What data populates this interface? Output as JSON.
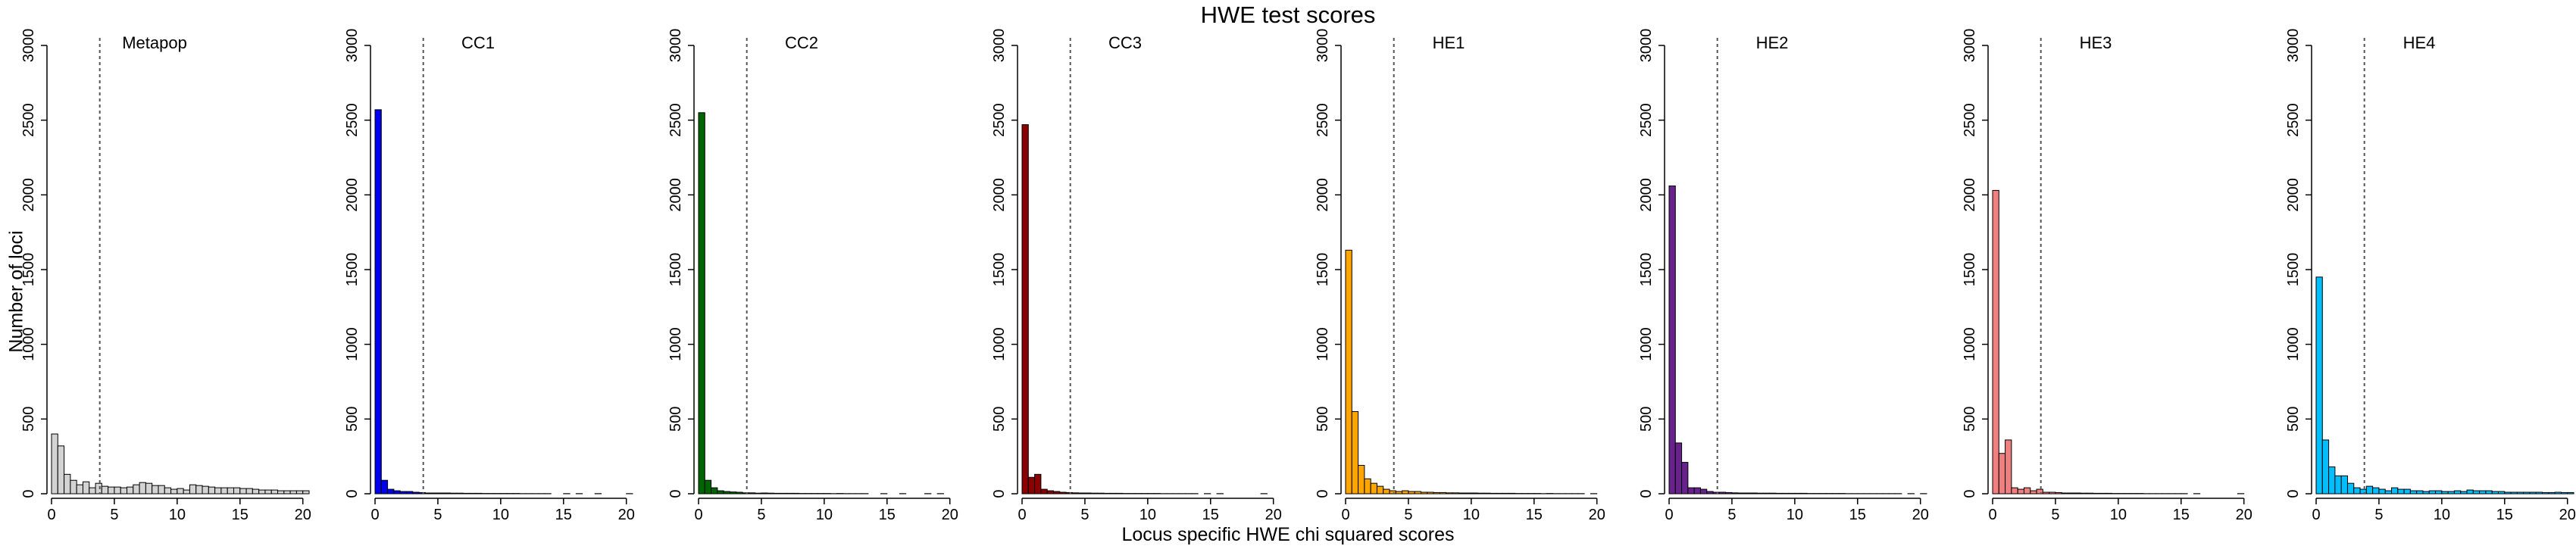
{
  "chart_data": {
    "type": "bar",
    "title": "HWE test scores",
    "xlabel": "Locus specific HWE chi squared scores",
    "ylabel": "Number of loci",
    "xlim": [
      0,
      20.5
    ],
    "ylim": [
      0,
      3000
    ],
    "x_ticks": [
      0,
      5,
      10,
      15,
      20
    ],
    "y_ticks": [
      0,
      500,
      1000,
      1500,
      2000,
      2500,
      3000
    ],
    "bin_width": 0.5,
    "threshold": 3.84,
    "panels": [
      {
        "name": "Metapop",
        "color": "#d3d3d3",
        "values": [
          400,
          320,
          130,
          90,
          60,
          80,
          40,
          70,
          50,
          45,
          45,
          40,
          45,
          60,
          75,
          70,
          55,
          55,
          40,
          30,
          35,
          25,
          60,
          55,
          50,
          45,
          40,
          40,
          40,
          40,
          35,
          35,
          30,
          25,
          25,
          25,
          20,
          20,
          20,
          20,
          20
        ]
      },
      {
        "name": "CC1",
        "color": "#0000ee",
        "values": [
          2570,
          90,
          30,
          20,
          15,
          15,
          10,
          8,
          5,
          5,
          5,
          5,
          4,
          4,
          3,
          3,
          3,
          2,
          2,
          2,
          2,
          2,
          2,
          1,
          1,
          1,
          1,
          1,
          0,
          0,
          1,
          0,
          1,
          0,
          0,
          1,
          0,
          0,
          0,
          0,
          1
        ]
      },
      {
        "name": "CC2",
        "color": "#006400",
        "values": [
          2550,
          90,
          40,
          20,
          15,
          12,
          10,
          6,
          6,
          4,
          5,
          4,
          3,
          3,
          3,
          3,
          2,
          2,
          2,
          2,
          2,
          1,
          2,
          1,
          1,
          1,
          1,
          0,
          0,
          1,
          0,
          0,
          1,
          0,
          0,
          0,
          1,
          0,
          1,
          0,
          0
        ]
      },
      {
        "name": "CC3",
        "color": "#8b0000",
        "values": [
          2470,
          110,
          130,
          30,
          20,
          15,
          10,
          8,
          6,
          5,
          5,
          4,
          4,
          3,
          3,
          3,
          2,
          2,
          2,
          2,
          2,
          2,
          1,
          1,
          1,
          1,
          1,
          1,
          0,
          1,
          0,
          1,
          0,
          0,
          0,
          0,
          0,
          0,
          1,
          0,
          0
        ]
      },
      {
        "name": "HE1",
        "color": "#ffa500",
        "values": [
          1630,
          550,
          190,
          100,
          70,
          50,
          30,
          20,
          15,
          20,
          15,
          15,
          10,
          10,
          8,
          8,
          6,
          6,
          5,
          5,
          5,
          4,
          4,
          3,
          3,
          3,
          3,
          2,
          2,
          2,
          2,
          1,
          2,
          1,
          1,
          1,
          1,
          1,
          0,
          1,
          0
        ]
      },
      {
        "name": "HE2",
        "color": "#68228b",
        "values": [
          2060,
          340,
          210,
          40,
          40,
          30,
          15,
          10,
          10,
          8,
          6,
          5,
          5,
          5,
          4,
          4,
          4,
          3,
          3,
          3,
          3,
          3,
          2,
          2,
          2,
          2,
          2,
          2,
          1,
          1,
          1,
          1,
          1,
          1,
          1,
          1,
          1,
          0,
          1,
          0,
          1
        ]
      },
      {
        "name": "HE3",
        "color": "#f08080",
        "values": [
          2030,
          270,
          360,
          40,
          30,
          40,
          20,
          30,
          10,
          10,
          8,
          5,
          5,
          5,
          4,
          4,
          3,
          3,
          3,
          2,
          2,
          2,
          2,
          2,
          1,
          1,
          1,
          1,
          1,
          1,
          1,
          0,
          1,
          0,
          0,
          0,
          0,
          0,
          0,
          1,
          0
        ]
      },
      {
        "name": "HE4",
        "color": "#00bfff",
        "values": [
          1450,
          360,
          180,
          120,
          120,
          70,
          40,
          30,
          50,
          40,
          30,
          20,
          40,
          30,
          30,
          20,
          20,
          15,
          20,
          20,
          15,
          15,
          20,
          15,
          25,
          20,
          20,
          20,
          15,
          15,
          10,
          10,
          10,
          10,
          10,
          10,
          8,
          8,
          10,
          8,
          8
        ]
      }
    ]
  }
}
